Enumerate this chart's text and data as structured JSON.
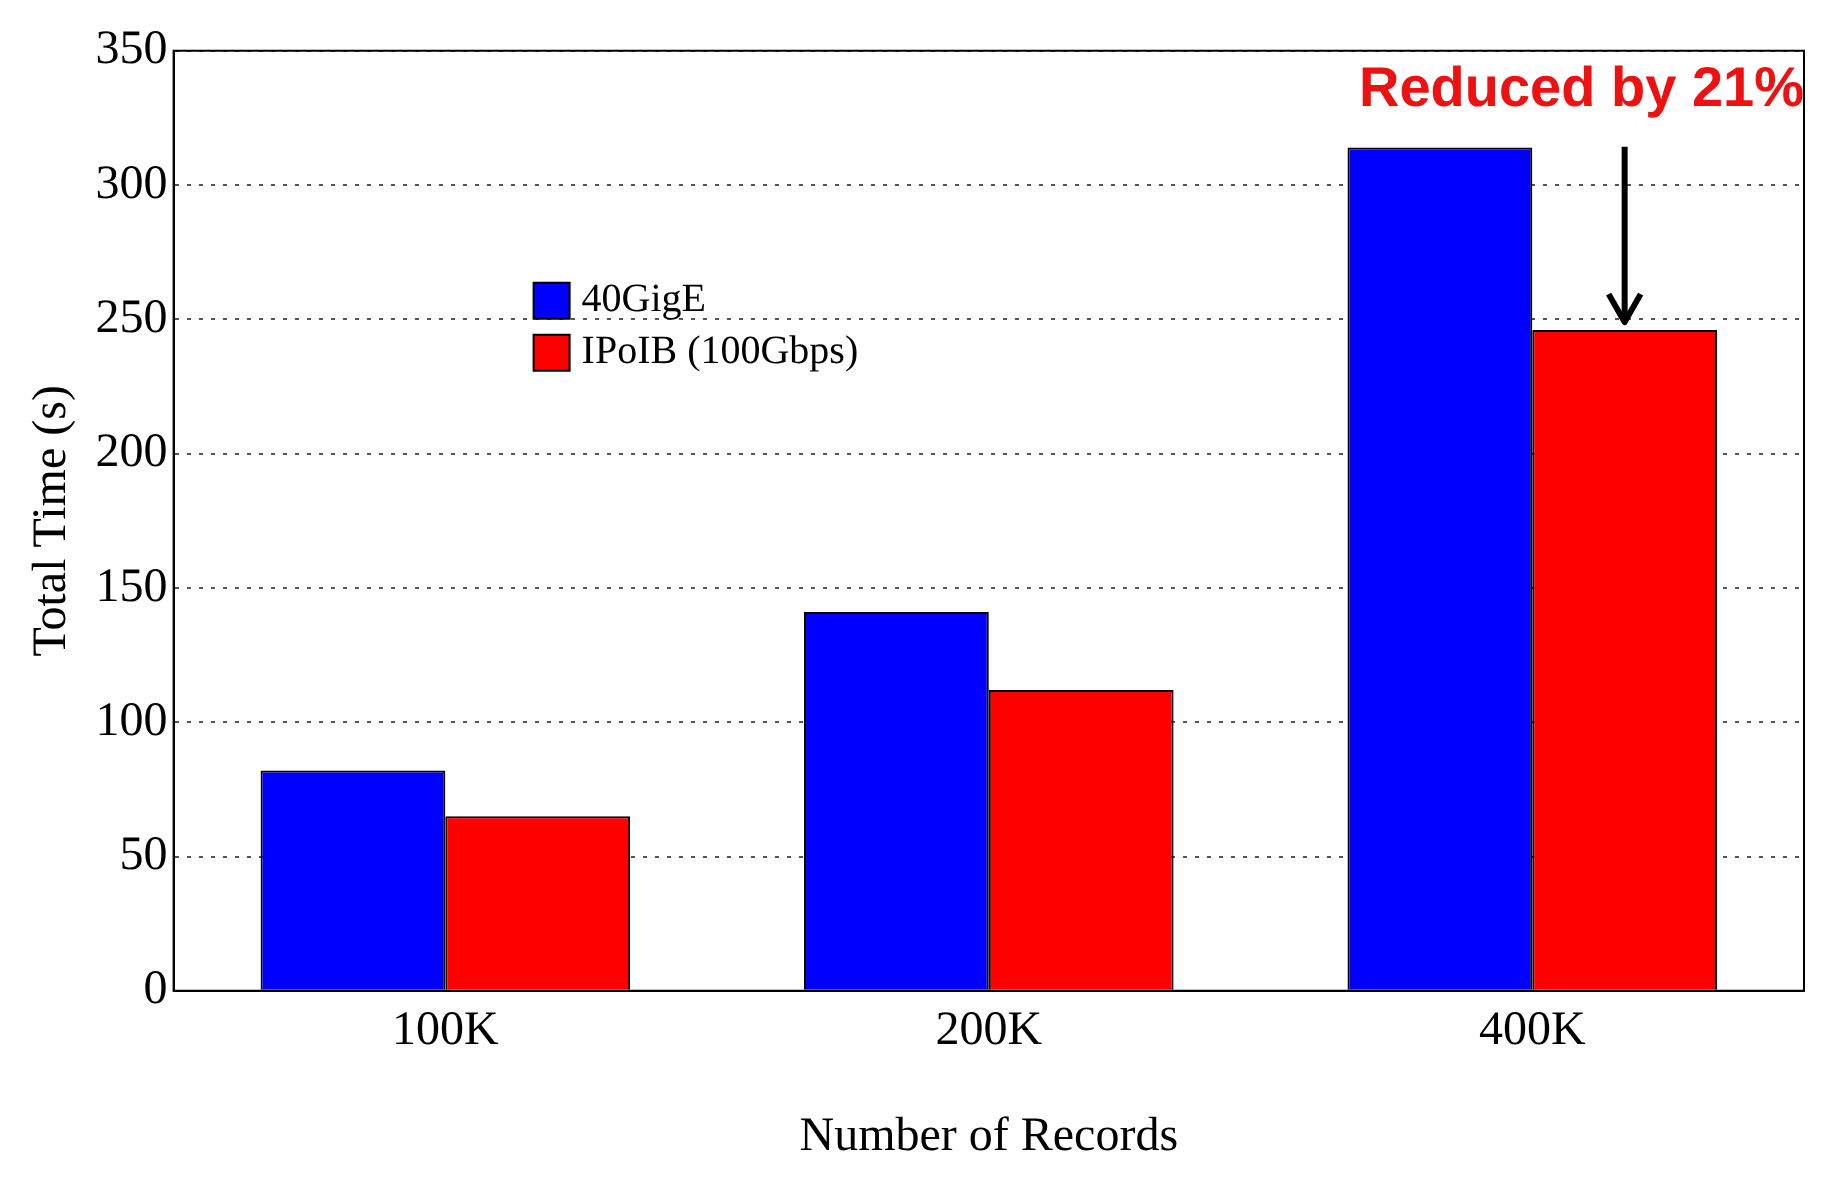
{
  "chart_data": {
    "type": "bar",
    "xlabel": "Number of Records",
    "ylabel": "Total Time (s)",
    "categories": [
      "100K",
      "200K",
      "400K"
    ],
    "series": [
      {
        "name": "40GigE",
        "color": "#0000ff",
        "values": [
          82,
          141,
          314
        ]
      },
      {
        "name": "IPoIB (100Gbps)",
        "color": "#ff0000",
        "values": [
          65,
          112,
          246
        ]
      }
    ],
    "ylim": [
      0,
      350
    ],
    "yticks": [
      0,
      50,
      100,
      150,
      200,
      250,
      300,
      350
    ],
    "grid": "y",
    "legend": "top left",
    "annotations": [
      "Reduced by 21%"
    ]
  }
}
